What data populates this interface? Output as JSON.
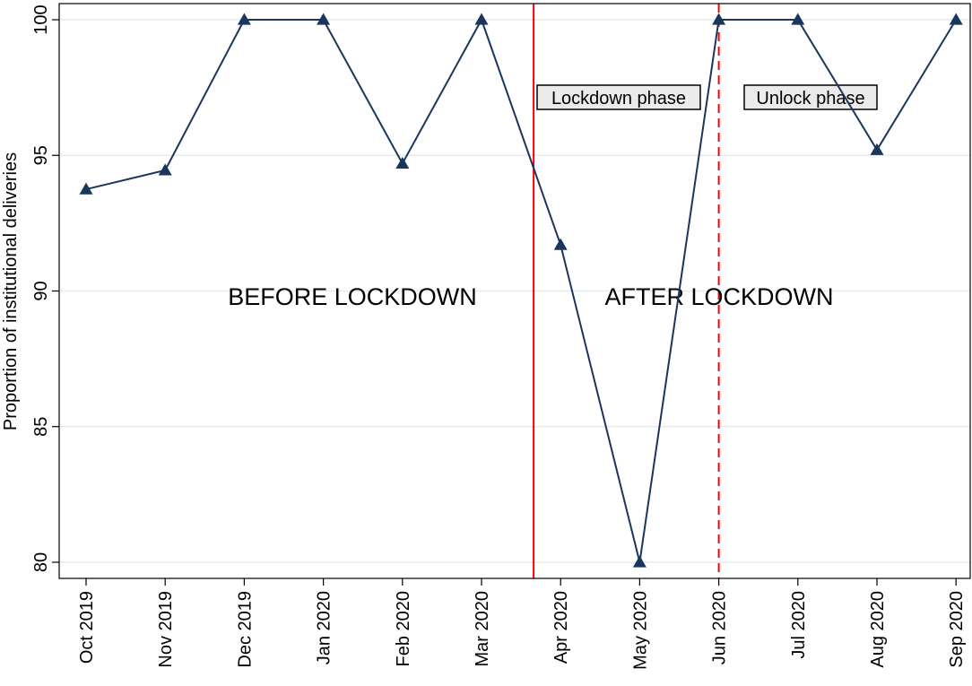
{
  "chart_data": {
    "type": "line",
    "title": "",
    "xlabel": "",
    "ylabel": "Proportion of institutional deliveries",
    "categories": [
      "Oct 2019",
      "Nov 2019",
      "Dec 2019",
      "Jan 2020",
      "Feb 2020",
      "Mar 2020",
      "Apr 2020",
      "May 2020",
      "Jun 2020",
      "Jul 2020",
      "Aug 2020",
      "Sep 2020"
    ],
    "series": [
      {
        "values": [
          93.75,
          94.45,
          100,
          100,
          94.7,
          100,
          91.7,
          80.0,
          100,
          100,
          95.2,
          100
        ]
      }
    ],
    "ylim": [
      80,
      100
    ],
    "yticks": [
      80,
      85,
      90,
      95,
      100
    ],
    "grid": true,
    "marker": "triangle",
    "line_color": "#1a365d",
    "annotations": {
      "before": "BEFORE LOCKDOWN",
      "after": "AFTER LOCKDOWN",
      "lockdown_phase": "Lockdown phase",
      "unlock_phase": "Unlock phase"
    },
    "vlines": [
      {
        "between": [
          "Mar 2020",
          "Apr 2020"
        ],
        "style": "solid",
        "color": "#ff0000"
      },
      {
        "at": "Jun 2020",
        "style": "dashed",
        "color": "#ff0000"
      }
    ]
  }
}
